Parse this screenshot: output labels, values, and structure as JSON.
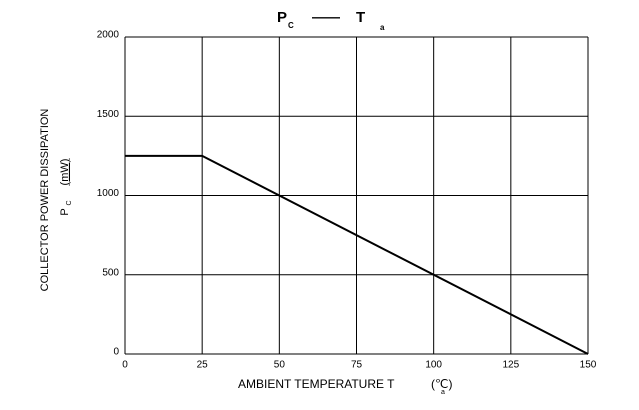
{
  "chart_data": {
    "type": "line",
    "title": [
      "P",
      "C",
      "——",
      "T",
      "a"
    ],
    "y_label": [
      "COLLECTOR POWER DISSIPATION",
      "P",
      "C",
      "(mW)"
    ],
    "x_label": [
      "AMBIENT TEMPERATURE T",
      "a",
      "(℃)"
    ],
    "x": [
      0,
      25,
      150
    ],
    "values": [
      1250,
      1250,
      0
    ],
    "color": "#000000",
    "xlim": [
      0,
      150
    ],
    "xticks": [
      0,
      25,
      50,
      75,
      100,
      125,
      150
    ],
    "ylim": [
      0,
      2000
    ],
    "yticks": [
      0,
      500,
      1000,
      1500,
      2000
    ],
    "grid": true
  }
}
